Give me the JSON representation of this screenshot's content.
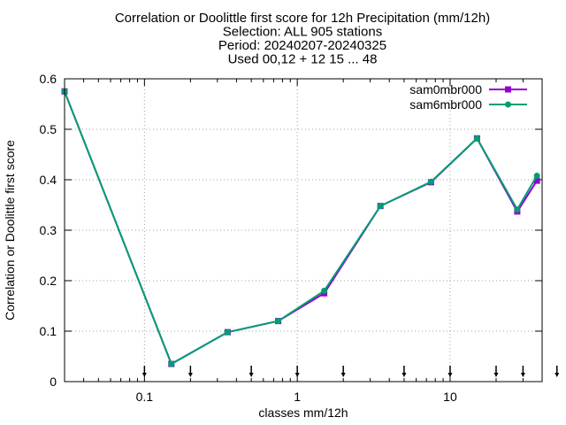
{
  "chart_data": {
    "type": "line",
    "title": [
      "Correlation or Doolittle first score  for 12h Precipitation (mm/12h)",
      "Selection: ALL    905 stations",
      "Period: 20240207-20240325",
      "Used 00,12 + 12 15 ... 48"
    ],
    "xlabel": "classes mm/12h",
    "ylabel": "Correlation or Doolittle first score",
    "x_scale": "log",
    "xlim": [
      0.03,
      40
    ],
    "ylim": [
      0,
      0.6
    ],
    "x_ticks": [
      0.1,
      1,
      10
    ],
    "x_tick_labels": [
      "0.1",
      "1",
      "10"
    ],
    "y_ticks": [
      0,
      0.1,
      0.2,
      0.3,
      0.4,
      0.5,
      0.6
    ],
    "y_tick_labels": [
      "0",
      "0.1",
      "0.2",
      "0.3",
      "0.4",
      "0.5",
      "0.6"
    ],
    "grid": true,
    "legend_position": "top-right",
    "class_markers_x": [
      0.1,
      0.2,
      0.5,
      1,
      2,
      5,
      10,
      20,
      30,
      50
    ],
    "series": [
      {
        "name": "sam0mbr000",
        "color": "#9400d3",
        "x": [
          0.03,
          0.15,
          0.35,
          0.75,
          1.5,
          3.5,
          7.5,
          15,
          27.5,
          37
        ],
        "values": [
          0.575,
          0.035,
          0.098,
          0.12,
          0.175,
          0.348,
          0.395,
          0.482,
          0.337,
          0.398
        ]
      },
      {
        "name": "sam6mbr000",
        "color": "#009e73",
        "x": [
          0.03,
          0.15,
          0.35,
          0.75,
          1.5,
          3.5,
          7.5,
          15,
          27.5,
          37
        ],
        "values": [
          0.575,
          0.035,
          0.098,
          0.12,
          0.18,
          0.348,
          0.396,
          0.482,
          0.341,
          0.408
        ]
      }
    ]
  }
}
